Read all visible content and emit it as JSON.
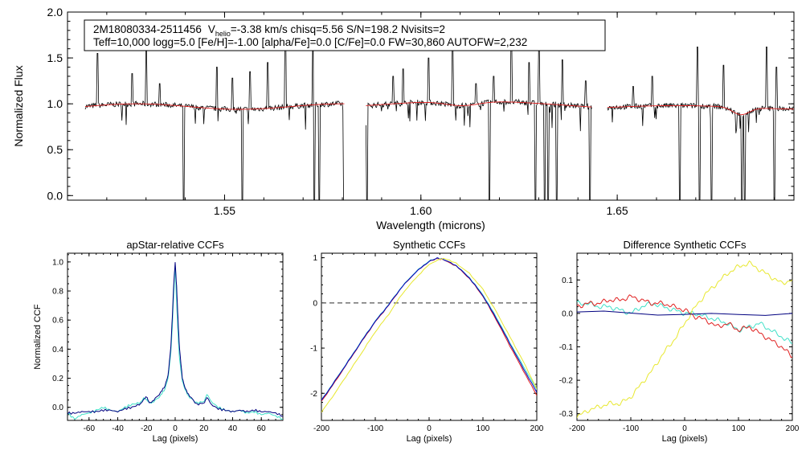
{
  "chart_data": [
    {
      "type": "line",
      "id": "spectrum",
      "xlabel": "Wavelength (microns)",
      "ylabel": "Normalized Flux",
      "xlim": [
        1.51,
        1.695
      ],
      "ylim": [
        -0.05,
        2.0
      ],
      "xticks": [
        1.55,
        1.6,
        1.65
      ],
      "xtick_labels": [
        "1.55",
        "1.60",
        "1.65"
      ],
      "yticks": [
        0.0,
        0.5,
        1.0,
        1.5,
        2.0
      ],
      "ytick_labels": [
        "0.0",
        "0.5",
        "1.0",
        "1.5",
        "2.0"
      ],
      "chips": [
        [
          1.5145,
          1.5805
        ],
        [
          1.586,
          1.6435
        ],
        [
          1.6475,
          1.6955
        ]
      ],
      "info": {
        "star": "2M18080334-2511456",
        "vhelio_symbol": "V",
        "vhelio_sub": "helio",
        "vhelio_rest": "=-3.38 km/s  chisq=5.56  S/N=198.2  Nvisits=2",
        "line2": "Teff=10,000 logg=5.0 [Fe/H]=-1.00 [alpha/Fe]=0.0 [C/Fe]=0.0 FW=30,860 AUTOFW=2,232"
      },
      "emission_spikes": [
        [
          1.5177,
          1.55
        ],
        [
          1.5265,
          1.33
        ],
        [
          1.53,
          1.58
        ],
        [
          1.5335,
          1.22
        ],
        [
          1.5395,
          1.18
        ],
        [
          1.548,
          1.4
        ],
        [
          1.552,
          1.28
        ],
        [
          1.5565,
          1.35
        ],
        [
          1.561,
          1.45
        ],
        [
          1.5655,
          1.88
        ],
        [
          1.5725,
          1.6
        ],
        [
          1.593,
          1.3
        ],
        [
          1.5955,
          1.38
        ],
        [
          1.602,
          1.5
        ],
        [
          1.608,
          1.65
        ],
        [
          1.614,
          1.22
        ],
        [
          1.6185,
          1.3
        ],
        [
          1.623,
          1.72
        ],
        [
          1.6275,
          1.45
        ],
        [
          1.63,
          1.62
        ],
        [
          1.636,
          1.48
        ],
        [
          1.642,
          1.25
        ],
        [
          1.654,
          1.19
        ],
        [
          1.659,
          1.3
        ],
        [
          1.666,
          1.88
        ],
        [
          1.6705,
          1.62
        ],
        [
          1.677,
          1.42
        ],
        [
          1.6825,
          1.32
        ],
        [
          1.688,
          1.62
        ],
        [
          1.6905,
          1.4
        ]
      ],
      "absorption_dips": [
        [
          1.5395,
          0.0
        ],
        [
          1.5545,
          0.0
        ],
        [
          1.5728,
          0.0
        ],
        [
          1.5742,
          0.0
        ],
        [
          1.5805,
          0.0
        ],
        [
          1.5862,
          0.0
        ],
        [
          1.6175,
          0.0
        ],
        [
          1.6292,
          0.0
        ],
        [
          1.6315,
          0.0
        ],
        [
          1.6325,
          0.0
        ],
        [
          1.6345,
          0.0
        ],
        [
          1.643,
          0.0
        ],
        [
          1.666,
          0.0
        ],
        [
          1.671,
          0.0
        ],
        [
          1.674,
          0.0
        ],
        [
          1.6818,
          0.0
        ],
        [
          1.6825,
          0.0
        ],
        [
          1.69,
          0.0
        ]
      ]
    },
    {
      "type": "line",
      "id": "apstar_ccf",
      "title": "apStar-relative CCFs",
      "xlabel": "Lag (pixels)",
      "ylabel": "Normalized CCF",
      "xlim": [
        -75,
        75
      ],
      "ylim": [
        -0.09,
        1.06
      ],
      "xticks": [
        -60,
        -40,
        -20,
        0,
        20,
        40,
        60
      ],
      "xtick_labels": [
        "-60",
        "-40",
        "-20",
        "0",
        "20",
        "40",
        "60"
      ],
      "yticks": [
        0.0,
        0.2,
        0.4,
        0.6,
        0.8,
        1.0
      ],
      "ytick_labels": [
        "0.0",
        "0.2",
        "0.4",
        "0.6",
        "0.8",
        "1.0"
      ],
      "series": [
        {
          "name": "visit2",
          "color": "#40e0c8",
          "x": [
            -75,
            -70,
            -65,
            -60,
            -55,
            -50,
            -45,
            -40,
            -35,
            -30,
            -25,
            -22,
            -20,
            -18,
            -15,
            -10,
            -7,
            -5,
            -3,
            -2,
            -1,
            0,
            1,
            2,
            3,
            5,
            7,
            10,
            15,
            20,
            22,
            25,
            30,
            35,
            40,
            45,
            50,
            55,
            60,
            65,
            70,
            75
          ],
          "y": [
            -0.04,
            -0.08,
            -0.05,
            -0.04,
            -0.02,
            0.0,
            -0.02,
            -0.03,
            0.0,
            0.02,
            0.03,
            0.06,
            0.05,
            0.03,
            0.04,
            0.08,
            0.13,
            0.2,
            0.38,
            0.55,
            0.78,
            0.98,
            0.72,
            0.5,
            0.33,
            0.18,
            0.12,
            0.07,
            0.03,
            0.04,
            0.09,
            0.04,
            0.0,
            -0.02,
            -0.03,
            -0.02,
            -0.04,
            -0.03,
            -0.05,
            -0.04,
            -0.06,
            -0.08
          ]
        },
        {
          "name": "visit1",
          "color": "#000080",
          "x": [
            -75,
            -70,
            -65,
            -60,
            -55,
            -50,
            -45,
            -40,
            -35,
            -30,
            -25,
            -22,
            -20,
            -18,
            -15,
            -10,
            -7,
            -5,
            -3,
            -2,
            -1,
            0,
            1,
            2,
            3,
            5,
            7,
            10,
            15,
            20,
            22,
            25,
            30,
            35,
            40,
            45,
            50,
            55,
            60,
            65,
            70,
            75
          ],
          "y": [
            -0.04,
            -0.04,
            -0.03,
            -0.03,
            -0.03,
            -0.02,
            -0.02,
            -0.03,
            -0.01,
            0.0,
            0.02,
            0.05,
            0.07,
            0.03,
            0.05,
            0.1,
            0.15,
            0.22,
            0.42,
            0.62,
            0.85,
            1.0,
            0.83,
            0.6,
            0.4,
            0.2,
            0.13,
            0.08,
            0.02,
            0.03,
            0.07,
            0.02,
            -0.01,
            -0.02,
            -0.03,
            -0.02,
            -0.03,
            -0.02,
            -0.03,
            -0.03,
            -0.04,
            -0.06
          ]
        }
      ]
    },
    {
      "type": "line",
      "id": "synthetic_ccf",
      "title": "Synthetic CCFs",
      "xlabel": "Lag (pixels)",
      "xlim": [
        -200,
        200
      ],
      "ylim": [
        -2.6,
        1.1
      ],
      "xticks": [
        -200,
        -100,
        0,
        100,
        200
      ],
      "xtick_labels": [
        "-200",
        "-100",
        "0",
        "100",
        "200"
      ],
      "yticks": [
        -2,
        -1,
        0,
        1
      ],
      "ytick_labels": [
        "-2",
        "-1",
        "0",
        "1"
      ],
      "zero_line": 0,
      "series": [
        {
          "name": "red",
          "color": "#e02020",
          "x": [
            -200,
            -175,
            -150,
            -125,
            -100,
            -75,
            -50,
            -25,
            0,
            15,
            25,
            50,
            75,
            100,
            125,
            150,
            175,
            200
          ],
          "y": [
            -2.18,
            -1.75,
            -1.3,
            -0.85,
            -0.42,
            -0.05,
            0.36,
            0.68,
            0.92,
            0.98,
            0.96,
            0.82,
            0.54,
            0.15,
            -0.38,
            -0.95,
            -1.5,
            -2.05
          ]
        },
        {
          "name": "cyan",
          "color": "#40e0c8",
          "x": [
            -200,
            -175,
            -150,
            -125,
            -100,
            -75,
            -50,
            -25,
            0,
            15,
            25,
            50,
            75,
            100,
            125,
            150,
            175,
            200
          ],
          "y": [
            -2.15,
            -1.72,
            -1.28,
            -0.83,
            -0.4,
            -0.03,
            0.37,
            0.69,
            0.93,
            0.99,
            0.97,
            0.83,
            0.56,
            0.18,
            -0.32,
            -0.88,
            -1.4,
            -1.92
          ]
        },
        {
          "name": "blue",
          "color": "#0000c0",
          "x": [
            -200,
            -175,
            -150,
            -125,
            -100,
            -75,
            -50,
            -25,
            0,
            15,
            25,
            50,
            75,
            100,
            125,
            150,
            175,
            200
          ],
          "y": [
            -2.16,
            -1.73,
            -1.29,
            -0.84,
            -0.41,
            -0.04,
            0.36,
            0.68,
            0.92,
            0.99,
            0.97,
            0.83,
            0.55,
            0.16,
            -0.35,
            -0.9,
            -1.45,
            -1.98
          ]
        },
        {
          "name": "yellow",
          "color": "#e8e830",
          "x": [
            -200,
            -175,
            -150,
            -125,
            -100,
            -75,
            -50,
            -25,
            0,
            20,
            30,
            50,
            75,
            100,
            125,
            150,
            175,
            200
          ],
          "y": [
            -2.42,
            -2.0,
            -1.55,
            -1.1,
            -0.64,
            -0.25,
            0.2,
            0.55,
            0.85,
            0.97,
            0.98,
            0.88,
            0.65,
            0.3,
            -0.2,
            -0.75,
            -1.3,
            -1.9
          ]
        }
      ]
    },
    {
      "type": "line",
      "id": "diff_ccf",
      "title": "Difference Synthetic CCFs",
      "xlabel": "Lag (pixels)",
      "xlim": [
        -200,
        200
      ],
      "ylim": [
        -0.32,
        0.18
      ],
      "xticks": [
        -200,
        -100,
        0,
        100,
        200
      ],
      "xtick_labels": [
        "-200",
        "-100",
        "0",
        "100",
        "200"
      ],
      "yticks": [
        -0.3,
        -0.2,
        -0.1,
        0.0,
        0.1
      ],
      "ytick_labels": [
        "-0.3",
        "-0.2",
        "-0.1",
        "0.0",
        "0.1"
      ],
      "zero_line": 0,
      "series": [
        {
          "name": "cyan",
          "color": "#40e0c8",
          "x": [
            -200,
            -180,
            -160,
            -140,
            -120,
            -100,
            -80,
            -60,
            -40,
            -20,
            0,
            20,
            40,
            60,
            80,
            100,
            120,
            140,
            160,
            180,
            200
          ],
          "y": [
            0.03,
            0.03,
            0.02,
            0.02,
            0.01,
            0.0,
            0.02,
            0.03,
            0.02,
            0.01,
            0.0,
            0.0,
            -0.01,
            -0.02,
            -0.03,
            -0.05,
            -0.04,
            -0.03,
            -0.05,
            -0.07,
            -0.09
          ]
        },
        {
          "name": "red",
          "color": "#e02020",
          "x": [
            -200,
            -180,
            -160,
            -140,
            -120,
            -100,
            -80,
            -60,
            -40,
            -20,
            0,
            20,
            40,
            60,
            80,
            100,
            120,
            140,
            160,
            180,
            200
          ],
          "y": [
            0.02,
            0.03,
            0.03,
            0.04,
            0.04,
            0.05,
            0.04,
            0.03,
            0.03,
            0.02,
            0.01,
            -0.01,
            -0.02,
            -0.04,
            -0.03,
            -0.05,
            -0.04,
            -0.06,
            -0.08,
            -0.1,
            -0.13
          ]
        },
        {
          "name": "yellow",
          "color": "#e8e830",
          "x": [
            -200,
            -180,
            -160,
            -140,
            -120,
            -100,
            -80,
            -60,
            -40,
            -20,
            0,
            20,
            40,
            60,
            80,
            100,
            120,
            140,
            160,
            180,
            200
          ],
          "y": [
            -0.31,
            -0.29,
            -0.28,
            -0.27,
            -0.27,
            -0.25,
            -0.21,
            -0.17,
            -0.12,
            -0.08,
            -0.03,
            0.02,
            0.06,
            0.09,
            0.12,
            0.14,
            0.15,
            0.13,
            0.11,
            0.09,
            0.1
          ]
        },
        {
          "name": "navy",
          "color": "#000080",
          "x": [
            -200,
            200
          ],
          "y": [
            0.0,
            0.0
          ]
        }
      ]
    }
  ]
}
